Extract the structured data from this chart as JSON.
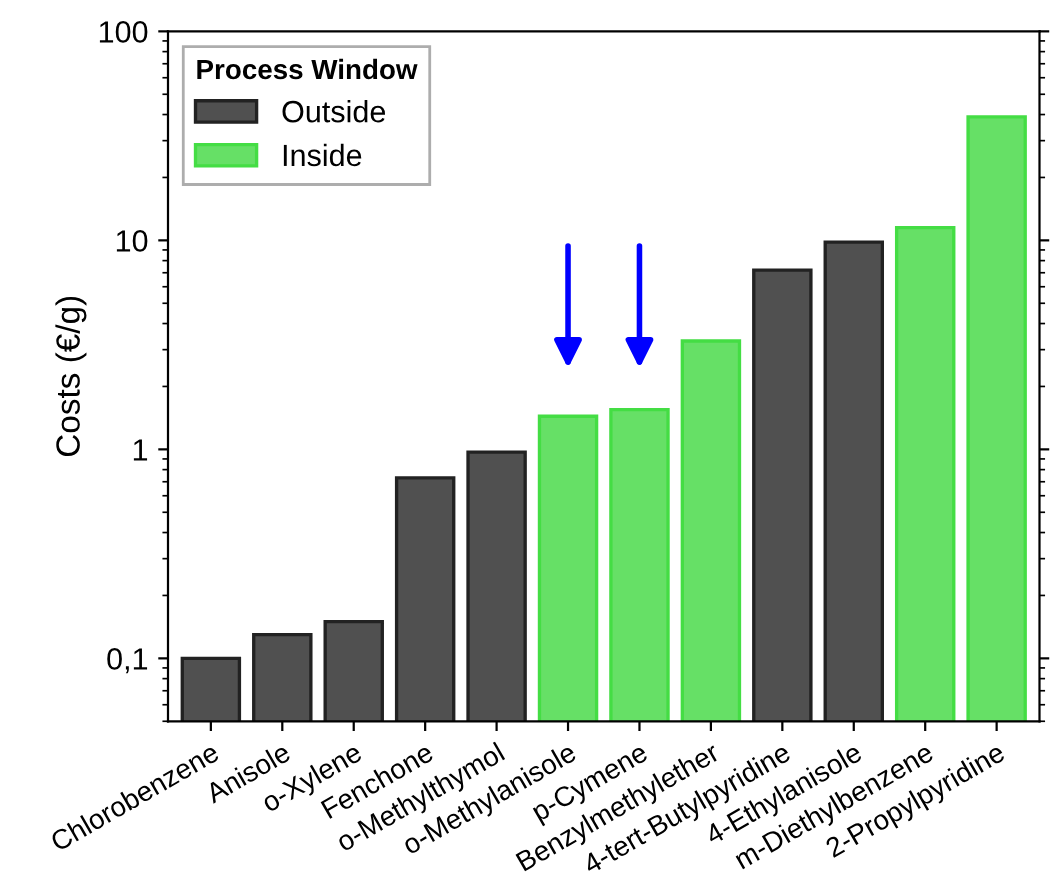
{
  "chart_data": {
    "type": "bar",
    "ylabel": "Costs (€/g)",
    "legend_title": "Process Window",
    "legend": "top left",
    "log": "y",
    "ylim": [
      0.05,
      100
    ],
    "yticks": [
      {
        "value": 0.1,
        "label": "0,1"
      },
      1,
      10,
      100
    ],
    "categories": [
      "Chlorobenzene",
      "Anisole",
      "o-Xylene",
      "Fenchone",
      "o-Methylthymol",
      "o-Methylanisole",
      "p-Cymene",
      "Benzylmethylether",
      "4-tert-Butylpyridine",
      "4-Ethylanisole",
      "m-Diethylbenzene",
      "2-Propylpyridine"
    ],
    "series": [
      {
        "name": "Outside",
        "color": "#505050",
        "values": [
          0.1,
          0.13,
          0.15,
          0.73,
          0.97,
          null,
          null,
          null,
          7.2,
          9.8,
          null,
          null
        ]
      },
      {
        "name": "Inside",
        "color": "#66e066",
        "values": [
          null,
          null,
          null,
          null,
          null,
          1.44,
          1.55,
          3.3,
          null,
          null,
          11.5,
          39
        ]
      }
    ]
  }
}
